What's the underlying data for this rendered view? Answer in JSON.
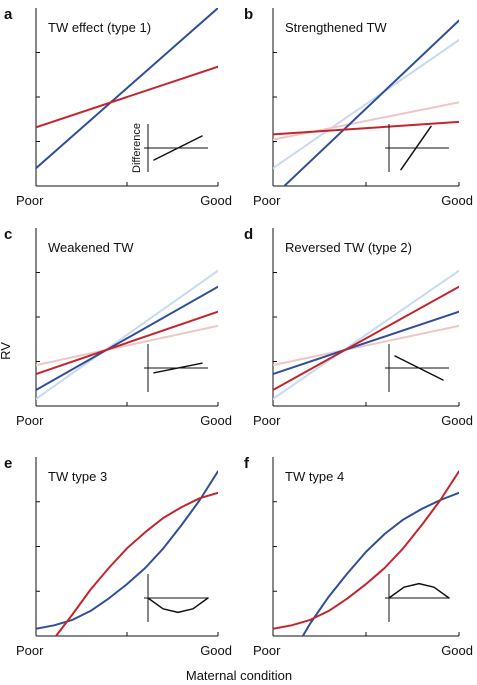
{
  "figure": {
    "xlabel": "Maternal condition",
    "ylabel": "RV"
  },
  "colors": {
    "blue": "#2f4f9a",
    "red": "#c4252c",
    "light_blue": "#c7daf0",
    "light_red": "#efc6c6",
    "axis": "#111111"
  },
  "chart_data": [
    {
      "id": "a",
      "panel_label": "a",
      "title": "TW effect (type 1)",
      "type": "line",
      "x_tick_labels": [
        "Poor",
        "Good"
      ],
      "xlim": [
        0,
        1
      ],
      "ylim": [
        0,
        1
      ],
      "series": [
        {
          "color": "blue",
          "x": [
            0,
            1
          ],
          "y": [
            0.1,
            1.0
          ]
        },
        {
          "color": "red",
          "x": [
            0,
            1
          ],
          "y": [
            0.33,
            0.67
          ]
        }
      ],
      "inset": {
        "ylabel": "Difference",
        "x": [
          0.1,
          0.9
        ],
        "y": [
          -0.5,
          0.5
        ]
      }
    },
    {
      "id": "b",
      "panel_label": "b",
      "title": "Strengthened TW",
      "type": "line",
      "x_tick_labels": [
        "Poor",
        "Good"
      ],
      "xlim": [
        0,
        1
      ],
      "ylim": [
        0,
        1
      ],
      "series": [
        {
          "color": "light_blue",
          "x": [
            0,
            1
          ],
          "y": [
            0.1,
            0.82
          ]
        },
        {
          "color": "light_red",
          "x": [
            0,
            1
          ],
          "y": [
            0.26,
            0.47
          ]
        },
        {
          "color": "blue",
          "x": [
            0,
            1
          ],
          "y": [
            -0.06,
            0.93
          ]
        },
        {
          "color": "red",
          "x": [
            0,
            1
          ],
          "y": [
            0.29,
            0.36
          ]
        }
      ],
      "inset": {
        "ylabel": "",
        "x": [
          0.2,
          0.7
        ],
        "y": [
          -0.9,
          0.9
        ]
      }
    },
    {
      "id": "c",
      "panel_label": "c",
      "title": "Weakened TW",
      "type": "line",
      "x_tick_labels": [
        "Poor",
        "Good"
      ],
      "xlim": [
        0,
        1
      ],
      "ylim": [
        0,
        1
      ],
      "series": [
        {
          "color": "light_blue",
          "x": [
            0,
            1
          ],
          "y": [
            0.04,
            0.76
          ]
        },
        {
          "color": "light_red",
          "x": [
            0,
            1
          ],
          "y": [
            0.23,
            0.45
          ]
        },
        {
          "color": "blue",
          "x": [
            0,
            1
          ],
          "y": [
            0.09,
            0.67
          ]
        },
        {
          "color": "red",
          "x": [
            0,
            1
          ],
          "y": [
            0.18,
            0.53
          ]
        }
      ],
      "inset": {
        "ylabel": "",
        "x": [
          0.1,
          0.9
        ],
        "y": [
          -0.2,
          0.2
        ]
      }
    },
    {
      "id": "d",
      "panel_label": "d",
      "title": "Reversed TW (type 2)",
      "type": "line",
      "x_tick_labels": [
        "Poor",
        "Good"
      ],
      "xlim": [
        0,
        1
      ],
      "ylim": [
        0,
        1
      ],
      "series": [
        {
          "color": "light_blue",
          "x": [
            0,
            1
          ],
          "y": [
            0.04,
            0.76
          ]
        },
        {
          "color": "light_red",
          "x": [
            0,
            1
          ],
          "y": [
            0.23,
            0.45
          ]
        },
        {
          "color": "blue",
          "x": [
            0,
            1
          ],
          "y": [
            0.18,
            0.53
          ]
        },
        {
          "color": "red",
          "x": [
            0,
            1
          ],
          "y": [
            0.09,
            0.67
          ]
        }
      ],
      "inset": {
        "ylabel": "",
        "x": [
          0.1,
          0.9
        ],
        "y": [
          0.5,
          -0.5
        ]
      }
    },
    {
      "id": "e",
      "panel_label": "e",
      "title": "TW type 3",
      "type": "line",
      "x_tick_labels": [
        "Poor",
        "Good"
      ],
      "xlim": [
        0,
        1
      ],
      "ylim": [
        0,
        1
      ],
      "series": [
        {
          "color": "blue",
          "x": [
            0,
            0.1,
            0.2,
            0.3,
            0.4,
            0.5,
            0.6,
            0.7,
            0.8,
            0.9,
            1.0
          ],
          "y": [
            0.04,
            0.06,
            0.09,
            0.14,
            0.21,
            0.29,
            0.38,
            0.49,
            0.62,
            0.76,
            0.92
          ]
        },
        {
          "color": "red",
          "x": [
            0.11,
            0.2,
            0.3,
            0.4,
            0.5,
            0.6,
            0.7,
            0.8,
            0.9,
            1.0
          ],
          "y": [
            0.0,
            0.12,
            0.26,
            0.38,
            0.49,
            0.58,
            0.66,
            0.72,
            0.77,
            0.8
          ]
        }
      ],
      "inset": {
        "ylabel": "",
        "x": [
          0.0,
          0.25,
          0.5,
          0.75,
          1.0
        ],
        "y": [
          0.0,
          -0.45,
          -0.6,
          -0.45,
          0.0
        ]
      }
    },
    {
      "id": "f",
      "panel_label": "f",
      "title": "TW type 4",
      "type": "line",
      "x_tick_labels": [
        "Poor",
        "Good"
      ],
      "xlim": [
        0,
        1
      ],
      "ylim": [
        0,
        1
      ],
      "series": [
        {
          "color": "blue",
          "x": [
            0.16,
            0.2,
            0.3,
            0.4,
            0.5,
            0.6,
            0.7,
            0.8,
            0.9,
            1.0
          ],
          "y": [
            0.0,
            0.07,
            0.22,
            0.35,
            0.47,
            0.57,
            0.65,
            0.71,
            0.76,
            0.8
          ]
        },
        {
          "color": "red",
          "x": [
            0,
            0.1,
            0.2,
            0.3,
            0.4,
            0.5,
            0.6,
            0.7,
            0.8,
            0.9,
            1.0
          ],
          "y": [
            0.04,
            0.06,
            0.09,
            0.14,
            0.21,
            0.29,
            0.38,
            0.49,
            0.62,
            0.76,
            0.92
          ]
        }
      ],
      "inset": {
        "ylabel": "",
        "x": [
          0.0,
          0.25,
          0.5,
          0.75,
          1.0
        ],
        "y": [
          0.0,
          0.45,
          0.6,
          0.45,
          0.0
        ]
      }
    }
  ]
}
